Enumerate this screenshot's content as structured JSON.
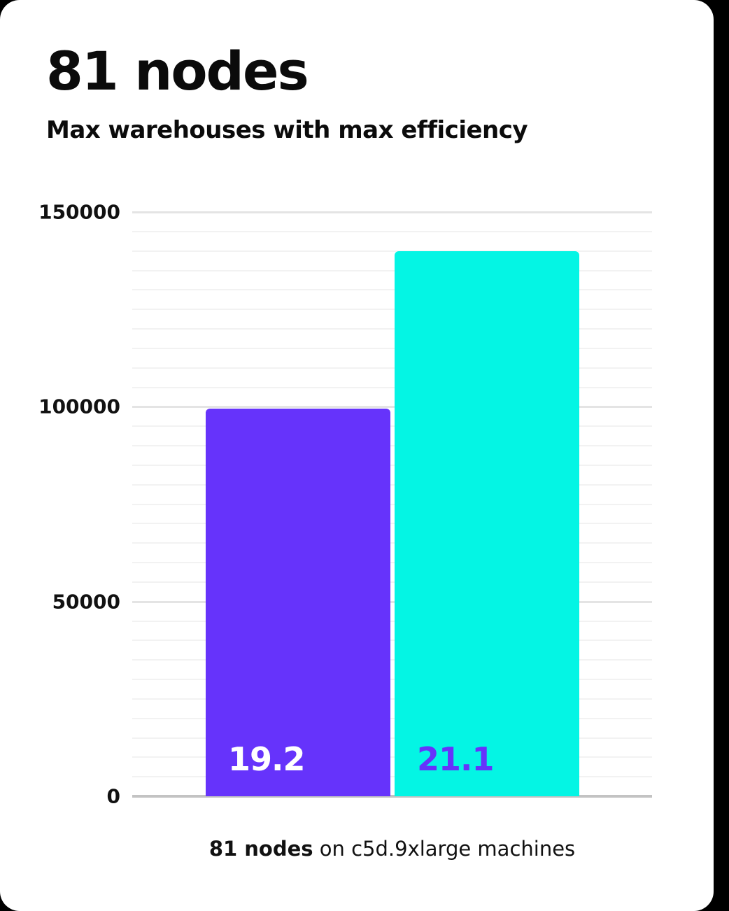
{
  "header": {
    "title": "81 nodes",
    "subtitle": "Max warehouses with max efficiency"
  },
  "footer": {
    "caption_bold": "81 nodes",
    "caption_rest": " on c5d.9xlarge machines"
  },
  "colors": {
    "background": "#000000",
    "card": "#ffffff",
    "purple": "#6633fb",
    "cyan": "#04f5e4",
    "grid_minor": "#f2f2f2",
    "grid_major": "#e4e4e4",
    "axis_baseline": "#c3c3c3",
    "text": "#0b0b0b"
  },
  "chart_data": {
    "type": "bar",
    "title": "81 nodes",
    "subtitle": "Max warehouses with max efficiency",
    "caption": "81 nodes on c5d.9xlarge machines",
    "categories": [
      "bar-1",
      "bar-2"
    ],
    "values": [
      99500,
      140000
    ],
    "bar_labels": [
      "19.2",
      "21.1"
    ],
    "bar_colors": [
      "#6633fb",
      "#04f5e4"
    ],
    "bar_label_colors": [
      "#ffffff",
      "#6633fb"
    ],
    "xlabel": "",
    "ylabel": "",
    "ylim": [
      0,
      150000
    ],
    "yticks": [
      0,
      50000,
      100000,
      150000
    ],
    "grid": true,
    "gridline_step": 5000,
    "legend": false
  }
}
